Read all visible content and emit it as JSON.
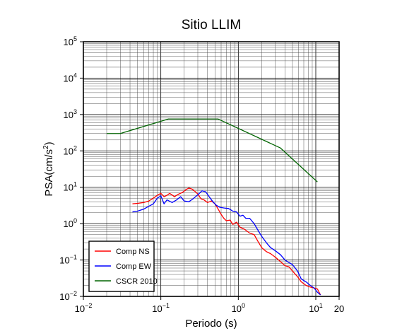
{
  "chart_data": {
    "type": "line",
    "title": "Sitio LLIM",
    "xlabel": "Periodo (s)",
    "ylabel_base": "PSA(cm/s",
    "ylabel_sup": "2",
    "ylabel_close": ")",
    "xscale": "log",
    "yscale": "log",
    "xlim": [
      0.01,
      20
    ],
    "ylim": [
      0.01,
      100000
    ],
    "grid": true,
    "legend_position": "bottom-left",
    "x_ticks": [
      {
        "base": "10",
        "exp": "−2"
      },
      {
        "base": "10",
        "exp": "−1"
      },
      {
        "base": "10",
        "exp": "0"
      },
      {
        "base": "10",
        "exp": "1"
      },
      {
        "base": "20",
        "exp": ""
      }
    ],
    "y_ticks": [
      {
        "base": "10",
        "exp": "−2"
      },
      {
        "base": "10",
        "exp": "−1"
      },
      {
        "base": "10",
        "exp": "0"
      },
      {
        "base": "10",
        "exp": "1"
      },
      {
        "base": "10",
        "exp": "2"
      },
      {
        "base": "10",
        "exp": "3"
      },
      {
        "base": "10",
        "exp": "4"
      },
      {
        "base": "10",
        "exp": "5"
      }
    ],
    "series": [
      {
        "name": "Comp NS",
        "color": "#ff0000",
        "points": [
          [
            0.043,
            3.5
          ],
          [
            0.05,
            3.6
          ],
          [
            0.06,
            3.8
          ],
          [
            0.07,
            4.2
          ],
          [
            0.08,
            5.0
          ],
          [
            0.09,
            6.0
          ],
          [
            0.1,
            6.8
          ],
          [
            0.11,
            5.5
          ],
          [
            0.12,
            6.0
          ],
          [
            0.13,
            6.8
          ],
          [
            0.15,
            5.5
          ],
          [
            0.17,
            6.5
          ],
          [
            0.19,
            7.2
          ],
          [
            0.21,
            8.5
          ],
          [
            0.23,
            9.5
          ],
          [
            0.25,
            9.0
          ],
          [
            0.28,
            7.5
          ],
          [
            0.3,
            6.5
          ],
          [
            0.33,
            4.8
          ],
          [
            0.36,
            4.5
          ],
          [
            0.4,
            3.8
          ],
          [
            0.45,
            4.2
          ],
          [
            0.5,
            3.5
          ],
          [
            0.55,
            2.5
          ],
          [
            0.6,
            1.8
          ],
          [
            0.65,
            1.4
          ],
          [
            0.7,
            1.2
          ],
          [
            0.78,
            1.25
          ],
          [
            0.85,
            0.95
          ],
          [
            0.95,
            1.1
          ],
          [
            1.05,
            0.8
          ],
          [
            1.2,
            0.7
          ],
          [
            1.4,
            0.55
          ],
          [
            1.6,
            0.5
          ],
          [
            1.8,
            0.32
          ],
          [
            2.0,
            0.22
          ],
          [
            2.3,
            0.17
          ],
          [
            2.6,
            0.15
          ],
          [
            3.0,
            0.12
          ],
          [
            3.5,
            0.09
          ],
          [
            4.0,
            0.07
          ],
          [
            4.5,
            0.065
          ],
          [
            5.0,
            0.05
          ],
          [
            5.8,
            0.035
          ],
          [
            6.5,
            0.025
          ],
          [
            7.5,
            0.02
          ],
          [
            8.5,
            0.018
          ],
          [
            9.5,
            0.017
          ],
          [
            10.5,
            0.016
          ],
          [
            11.5,
            0.011
          ]
        ]
      },
      {
        "name": "Comp EW",
        "color": "#0000ff",
        "points": [
          [
            0.043,
            2.1
          ],
          [
            0.05,
            2.2
          ],
          [
            0.06,
            2.5
          ],
          [
            0.07,
            3.0
          ],
          [
            0.08,
            3.5
          ],
          [
            0.09,
            5.0
          ],
          [
            0.1,
            5.8
          ],
          [
            0.11,
            3.5
          ],
          [
            0.12,
            4.5
          ],
          [
            0.14,
            3.8
          ],
          [
            0.16,
            4.5
          ],
          [
            0.18,
            5.5
          ],
          [
            0.2,
            4.2
          ],
          [
            0.23,
            4.0
          ],
          [
            0.26,
            4.8
          ],
          [
            0.3,
            6.2
          ],
          [
            0.34,
            8.0
          ],
          [
            0.38,
            7.5
          ],
          [
            0.42,
            5.5
          ],
          [
            0.47,
            4.0
          ],
          [
            0.52,
            3.2
          ],
          [
            0.58,
            2.8
          ],
          [
            0.65,
            2.7
          ],
          [
            0.75,
            2.6
          ],
          [
            0.85,
            2.2
          ],
          [
            0.95,
            2.1
          ],
          [
            1.05,
            1.6
          ],
          [
            1.15,
            1.7
          ],
          [
            1.25,
            1.4
          ],
          [
            1.4,
            1.4
          ],
          [
            1.6,
            1.0
          ],
          [
            1.8,
            0.65
          ],
          [
            2.0,
            0.45
          ],
          [
            2.3,
            0.3
          ],
          [
            2.6,
            0.22
          ],
          [
            3.0,
            0.18
          ],
          [
            3.5,
            0.14
          ],
          [
            4.0,
            0.1
          ],
          [
            4.5,
            0.085
          ],
          [
            5.0,
            0.075
          ],
          [
            5.8,
            0.05
          ],
          [
            6.5,
            0.03
          ],
          [
            7.5,
            0.025
          ],
          [
            8.5,
            0.02
          ],
          [
            9.5,
            0.017
          ],
          [
            10.5,
            0.013
          ],
          [
            11.5,
            0.011
          ]
        ]
      },
      {
        "name": "CSCR 2010",
        "color": "#006400",
        "points": [
          [
            0.02,
            300
          ],
          [
            0.03,
            300
          ],
          [
            0.125,
            750
          ],
          [
            0.55,
            750
          ],
          [
            3.5,
            120
          ],
          [
            10.5,
            14
          ]
        ]
      }
    ]
  }
}
